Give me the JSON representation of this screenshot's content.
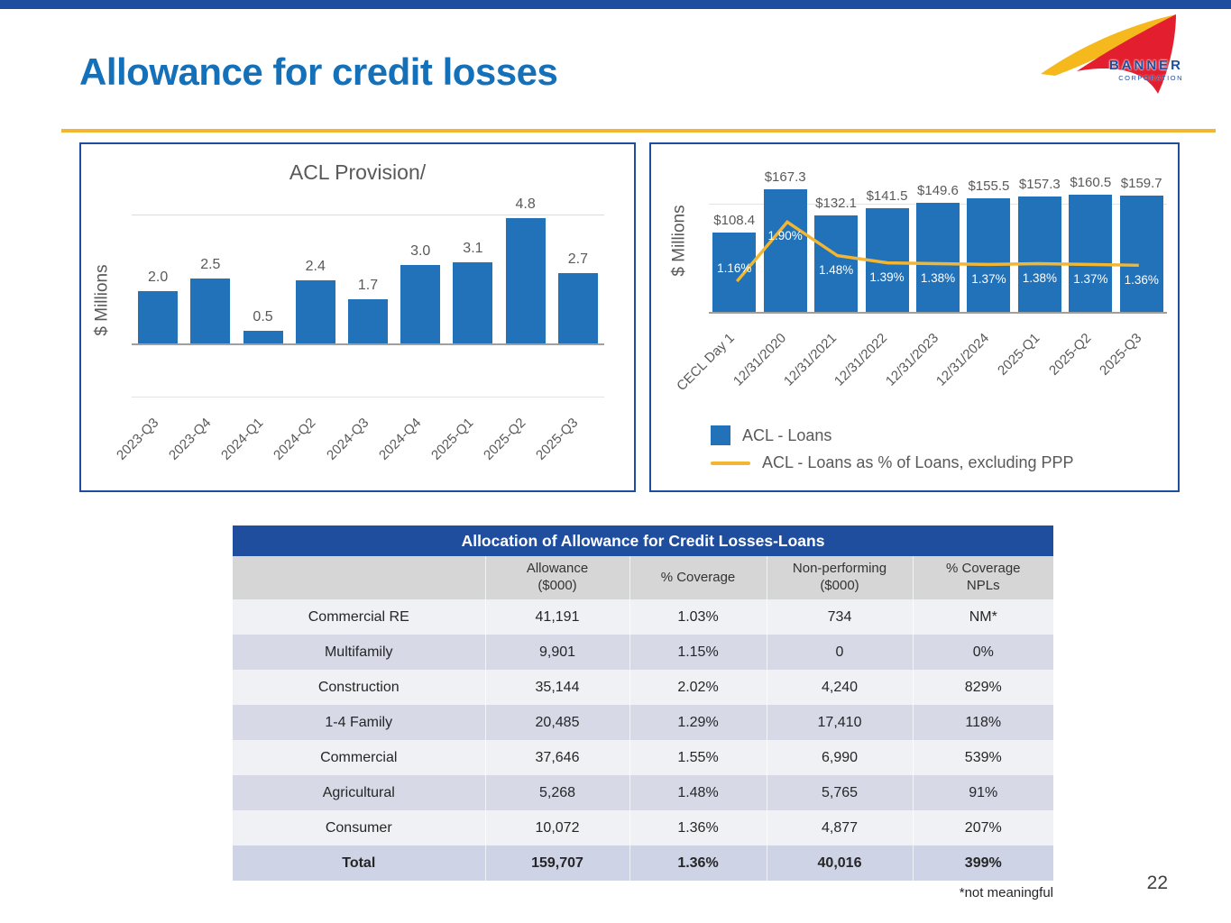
{
  "page": {
    "number": "22",
    "footnote": "*not meaningful"
  },
  "header": {
    "title": "Allowance for credit losses"
  },
  "logo": {
    "name": "BANNER",
    "subname": "CORPORATION"
  },
  "colors": {
    "brand_blue": "#1f4e9e",
    "title_blue": "#1470b8",
    "bar_blue": "#2272b9",
    "accent_gold": "#f2b632",
    "text_gray": "#595959",
    "band_light": "#f0f1f5",
    "band_lavender": "#d7d9e7",
    "header_gray": "#d6d6d6"
  },
  "chart_data": [
    {
      "type": "bar",
      "title": "ACL Provision/",
      "xlabel": "",
      "ylabel": "$ Millions",
      "categories": [
        "2023-Q3",
        "2023-Q4",
        "2024-Q1",
        "2024-Q2",
        "2024-Q3",
        "2024-Q4",
        "2025-Q1",
        "2025-Q2",
        "2025-Q3"
      ],
      "values": [
        2.0,
        2.5,
        0.5,
        2.4,
        1.7,
        3.0,
        3.1,
        4.8,
        2.7
      ],
      "labels": [
        "2.0",
        "2.5",
        "0.5",
        "2.4",
        "1.7",
        "3.0",
        "3.1",
        "4.8",
        "2.7"
      ],
      "ylim": [
        0,
        5
      ],
      "grid": "minimal",
      "legend": "none"
    },
    {
      "type": "bar+line",
      "title": "",
      "xlabel": "",
      "ylabel": "$ Millions",
      "categories": [
        "CECL Day 1",
        "12/31/2020",
        "12/31/2021",
        "12/31/2022",
        "12/31/2023",
        "12/31/2024",
        "2025-Q1",
        "2025-Q2",
        "2025-Q3"
      ],
      "series": [
        {
          "name": "ACL - Loans",
          "type": "bar",
          "values": [
            108.4,
            167.3,
            132.1,
            141.5,
            149.6,
            155.5,
            157.3,
            160.5,
            159.7
          ],
          "labels": [
            "$108.4",
            "$167.3",
            "$132.1",
            "$141.5",
            "$149.6",
            "$155.5",
            "$157.3",
            "$160.5",
            "$159.7"
          ]
        },
        {
          "name": "ACL - Loans as % of Loans, excluding PPP",
          "type": "line",
          "values": [
            1.16,
            1.9,
            1.48,
            1.39,
            1.38,
            1.37,
            1.38,
            1.37,
            1.36
          ],
          "labels": [
            "1.16%",
            "1.90%",
            "1.48%",
            "1.39%",
            "1.38%",
            "1.37%",
            "1.38%",
            "1.37%",
            "1.36%"
          ]
        }
      ],
      "ylim": [
        0,
        185
      ],
      "legend_position": "bottom-left"
    }
  ],
  "table": {
    "title": "Allocation of Allowance for Credit Losses-Loans",
    "columns": [
      "",
      "Allowance\n($000)",
      "% Coverage",
      "Non-performing\n($000)",
      "% Coverage\nNPLs"
    ],
    "rows": [
      [
        "Commercial RE",
        "41,191",
        "1.03%",
        "734",
        "NM*"
      ],
      [
        "Multifamily",
        "9,901",
        "1.15%",
        "0",
        "0%"
      ],
      [
        "Construction",
        "35,144",
        "2.02%",
        "4,240",
        "829%"
      ],
      [
        "1-4 Family",
        "20,485",
        "1.29%",
        "17,410",
        "118%"
      ],
      [
        "Commercial",
        "37,646",
        "1.55%",
        "6,990",
        "539%"
      ],
      [
        "Agricultural",
        "5,268",
        "1.48%",
        "5,765",
        "91%"
      ],
      [
        "Consumer",
        "10,072",
        "1.36%",
        "4,877",
        "207%"
      ],
      [
        "Total",
        "159,707",
        "1.36%",
        "40,016",
        "399%"
      ]
    ]
  }
}
